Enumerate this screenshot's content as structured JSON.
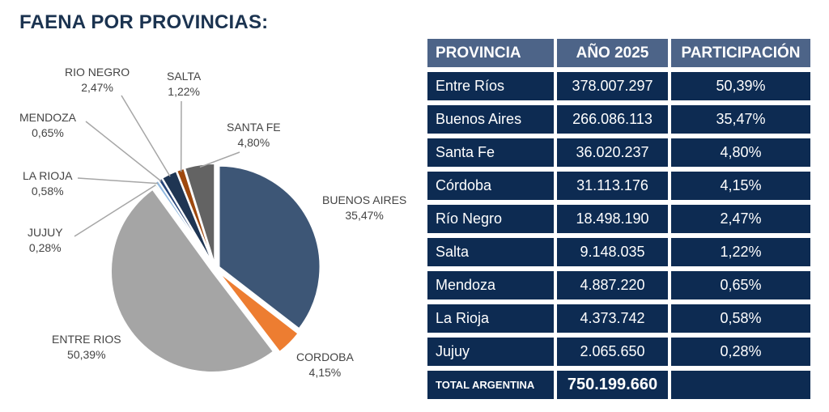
{
  "title": "FAENA POR PROVINCIAS:",
  "chart_data": {
    "type": "pie",
    "title": "",
    "slices": [
      {
        "label": "BUENOS AIRES",
        "value": 35.47,
        "text": "35,47%",
        "color": "#3d5676"
      },
      {
        "label": "CORDOBA",
        "value": 4.15,
        "text": "4,15%",
        "color": "#ed7d31"
      },
      {
        "label": "ENTRE RIOS",
        "value": 50.39,
        "text": "50,39%",
        "color": "#a5a5a5"
      },
      {
        "label": "JUJUY",
        "value": 0.28,
        "text": "0,28%",
        "color": "#70ad47"
      },
      {
        "label": "LA RIOJA",
        "value": 0.58,
        "text": "0,58%",
        "color": "#8fb8e0"
      },
      {
        "label": "MENDOZA",
        "value": 0.65,
        "text": "0,65%",
        "color": "#264478"
      },
      {
        "label": "RIO NEGRO",
        "value": 2.47,
        "text": "2,47%",
        "color": "#1f3553"
      },
      {
        "label": "SALTA",
        "value": 1.22,
        "text": "1,22%",
        "color": "#9e480e"
      },
      {
        "label": "SANTA FE",
        "value": 4.8,
        "text": "4,80%",
        "color": "#636363"
      }
    ]
  },
  "table": {
    "headers": [
      "PROVINCIA",
      "AÑO 2025",
      "PARTICIPACIÓN"
    ],
    "rows": [
      [
        "Entre Ríos",
        "378.007.297",
        "50,39%"
      ],
      [
        "Buenos Aires",
        "266.086.113",
        "35,47%"
      ],
      [
        "Santa Fe",
        "36.020.237",
        "4,80%"
      ],
      [
        "Córdoba",
        "31.113.176",
        "4,15%"
      ],
      [
        "Río Negro",
        "18.498.190",
        "2,47%"
      ],
      [
        "Salta",
        "9.148.035",
        "1,22%"
      ],
      [
        "Mendoza",
        "4.887.220",
        "0,65%"
      ],
      [
        "La Rioja",
        "4.373.742",
        "0,58%"
      ],
      [
        "Jujuy",
        "2.065.650",
        "0,28%"
      ]
    ],
    "total": [
      "TOTAL ARGENTINA",
      "750.199.660",
      ""
    ]
  }
}
